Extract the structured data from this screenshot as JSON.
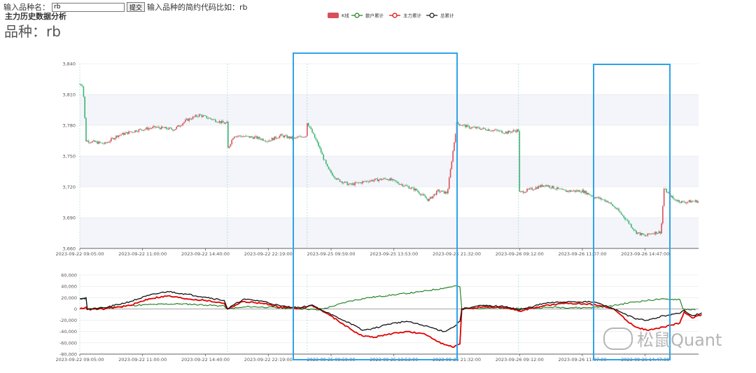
{
  "form": {
    "input_label": "输入品种名：",
    "input_value": "rb",
    "submit_label": "提交",
    "hint": "输入品种的简约代码比如：rb"
  },
  "app_title": "主力历史数据分析",
  "product_label": "品种：rb",
  "watermark": "松鼠Quant",
  "colors": {
    "up": "#d94e5d",
    "down": "#3cb371",
    "retail": "#1a7a1a",
    "main_force": "#e00000",
    "total": "#111111",
    "highlight_box": "#2fa3e6",
    "band": "#f3f5fa"
  },
  "chart_data": [
    {
      "type": "candlestick",
      "title": "",
      "legend": {
        "position": "top-center",
        "entries": [
          "K线",
          "散户累计",
          "主力累计",
          "总累计"
        ]
      },
      "x_ticks": [
        "2023-09-22 09:05:00",
        "2023-09-22 11:00:00",
        "2023-09-22 14:40:00",
        "2023-09-22 22:19:00",
        "2023-09-25 09:59:00",
        "2023-09-25 13:53:00",
        "2023-09-25 21:32:00",
        "2023-09-26 09:12:00",
        "2023-09-26 11:07:00",
        "2023-09-26 14:47:00"
      ],
      "y_ticks": [
        "3,660",
        "3,690",
        "3,720",
        "3,750",
        "3,780",
        "3,810",
        "3,840"
      ],
      "ylim": [
        3660,
        3840
      ],
      "grid": true,
      "session_breaks": [
        0,
        2.35,
        3.62,
        6.98
      ],
      "series": [
        {
          "name": "K线",
          "points": [
            [
              0,
              3820
            ],
            [
              0.05,
              3819
            ],
            [
              0.1,
              3765
            ],
            [
              0.4,
              3762
            ],
            [
              0.6,
              3770
            ],
            [
              0.9,
              3775
            ],
            [
              1.2,
              3778
            ],
            [
              1.5,
              3776
            ],
            [
              1.7,
              3785
            ],
            [
              1.9,
              3790
            ],
            [
              2.1,
              3786
            ],
            [
              2.3,
              3782
            ],
            [
              2.35,
              3756
            ],
            [
              2.45,
              3770
            ],
            [
              2.8,
              3768
            ],
            [
              3.0,
              3765
            ],
            [
              3.2,
              3770
            ],
            [
              3.4,
              3767
            ],
            [
              3.6,
              3770
            ],
            [
              3.62,
              3783
            ],
            [
              3.8,
              3760
            ],
            [
              3.95,
              3737
            ],
            [
              4.1,
              3727
            ],
            [
              4.3,
              3722
            ],
            [
              4.6,
              3726
            ],
            [
              4.9,
              3728
            ],
            [
              5.1,
              3723
            ],
            [
              5.35,
              3717
            ],
            [
              5.55,
              3707
            ],
            [
              5.7,
              3716
            ],
            [
              5.85,
              3714
            ],
            [
              6.0,
              3782
            ],
            [
              6.2,
              3778
            ],
            [
              6.5,
              3776
            ],
            [
              6.8,
              3773
            ],
            [
              6.95,
              3775
            ],
            [
              6.98,
              3714
            ],
            [
              7.2,
              3718
            ],
            [
              7.4,
              3722
            ],
            [
              7.7,
              3716
            ],
            [
              8.0,
              3716
            ],
            [
              8.2,
              3710
            ],
            [
              8.4,
              3706
            ],
            [
              8.55,
              3698
            ],
            [
              8.7,
              3688
            ],
            [
              8.85,
              3676
            ],
            [
              9.0,
              3672
            ],
            [
              9.1,
              3675
            ],
            [
              9.25,
              3676
            ],
            [
              9.3,
              3718
            ],
            [
              9.45,
              3708
            ],
            [
              9.6,
              3705
            ],
            [
              9.75,
              3706
            ]
          ]
        }
      ]
    },
    {
      "type": "line",
      "title": "",
      "x_ticks": [
        "2023-09-22 09:05:00",
        "2023-09-22 11:00:00",
        "2023-09-22 14:40:00",
        "2023-09-22 22:19:00",
        "2023-09-25 09:59:00",
        "2023-09-25 13:53:00",
        "2023-09-25 21:32:00",
        "2023-09-26 09:12:00",
        "2023-09-26 11:07:00",
        "2023-09-26 14:47:00"
      ],
      "y_ticks": [
        "-80,000",
        "-60,000",
        "-40,000",
        "-20,000",
        "0",
        "20,000",
        "40,000",
        "60,000"
      ],
      "ylim": [
        -80000,
        60000
      ],
      "grid": true,
      "series": [
        {
          "name": "散户累计",
          "points": [
            [
              0,
              18000
            ],
            [
              0.1,
              18000
            ],
            [
              0.12,
              0
            ],
            [
              0.5,
              3000
            ],
            [
              0.8,
              6000
            ],
            [
              1.2,
              8000
            ],
            [
              1.6,
              9000
            ],
            [
              2.0,
              7000
            ],
            [
              2.3,
              5000
            ],
            [
              2.35,
              0
            ],
            [
              2.7,
              4000
            ],
            [
              3.0,
              3000
            ],
            [
              3.3,
              1000
            ],
            [
              3.6,
              0
            ],
            [
              3.8,
              -2000
            ],
            [
              4.0,
              4000
            ],
            [
              4.3,
              14000
            ],
            [
              4.6,
              20000
            ],
            [
              5.0,
              25000
            ],
            [
              5.4,
              30000
            ],
            [
              5.8,
              37000
            ],
            [
              6.0,
              41000
            ],
            [
              6.05,
              39000
            ],
            [
              6.08,
              0
            ],
            [
              6.5,
              2000
            ],
            [
              7.0,
              0
            ],
            [
              7.5,
              3000
            ],
            [
              8.0,
              2000
            ],
            [
              8.4,
              4000
            ],
            [
              8.8,
              12000
            ],
            [
              9.2,
              17000
            ],
            [
              9.55,
              17000
            ],
            [
              9.6,
              0
            ],
            [
              9.8,
              -2000
            ]
          ]
        },
        {
          "name": "主力累计",
          "points": [
            [
              0,
              0
            ],
            [
              0.1,
              3000
            ],
            [
              0.12,
              -1000
            ],
            [
              0.4,
              0
            ],
            [
              0.8,
              6000
            ],
            [
              1.1,
              18000
            ],
            [
              1.4,
              23000
            ],
            [
              1.7,
              18000
            ],
            [
              2.0,
              15000
            ],
            [
              2.3,
              10000
            ],
            [
              2.35,
              0
            ],
            [
              2.6,
              13000
            ],
            [
              2.9,
              10000
            ],
            [
              3.2,
              3000
            ],
            [
              3.5,
              1000
            ],
            [
              3.7,
              6000
            ],
            [
              3.9,
              -6000
            ],
            [
              4.1,
              -20000
            ],
            [
              4.3,
              -35000
            ],
            [
              4.5,
              -48000
            ],
            [
              4.7,
              -50000
            ],
            [
              4.9,
              -45000
            ],
            [
              5.2,
              -40000
            ],
            [
              5.5,
              -45000
            ],
            [
              5.8,
              -63000
            ],
            [
              5.95,
              -68000
            ],
            [
              6.05,
              -62000
            ],
            [
              6.08,
              0
            ],
            [
              6.4,
              3000
            ],
            [
              6.8,
              2000
            ],
            [
              7.0,
              -4000
            ],
            [
              7.4,
              6000
            ],
            [
              7.8,
              10000
            ],
            [
              8.2,
              8000
            ],
            [
              8.5,
              0
            ],
            [
              8.7,
              -20000
            ],
            [
              8.85,
              -32000
            ],
            [
              9.05,
              -38000
            ],
            [
              9.3,
              -32000
            ],
            [
              9.55,
              -25000
            ],
            [
              9.62,
              -5000
            ],
            [
              9.75,
              -16000
            ],
            [
              9.9,
              -10000
            ]
          ]
        },
        {
          "name": "总累计",
          "points": [
            [
              0,
              18000
            ],
            [
              0.1,
              20000
            ],
            [
              0.12,
              -1000
            ],
            [
              0.4,
              2000
            ],
            [
              0.8,
              13000
            ],
            [
              1.1,
              24000
            ],
            [
              1.4,
              31000
            ],
            [
              1.7,
              26000
            ],
            [
              2.0,
              21000
            ],
            [
              2.3,
              15000
            ],
            [
              2.35,
              0
            ],
            [
              2.6,
              17000
            ],
            [
              2.9,
              14000
            ],
            [
              3.2,
              5000
            ],
            [
              3.5,
              2000
            ],
            [
              3.7,
              7000
            ],
            [
              3.9,
              -5000
            ],
            [
              4.1,
              -15000
            ],
            [
              4.3,
              -25000
            ],
            [
              4.5,
              -38000
            ],
            [
              4.7,
              -34000
            ],
            [
              4.9,
              -27000
            ],
            [
              5.2,
              -22000
            ],
            [
              5.5,
              -30000
            ],
            [
              5.8,
              -40000
            ],
            [
              5.95,
              -32000
            ],
            [
              6.05,
              -22000
            ],
            [
              6.08,
              0
            ],
            [
              6.4,
              6000
            ],
            [
              6.8,
              4000
            ],
            [
              7.0,
              -2000
            ],
            [
              7.4,
              10000
            ],
            [
              7.8,
              13000
            ],
            [
              8.2,
              12000
            ],
            [
              8.5,
              0
            ],
            [
              8.7,
              -10000
            ],
            [
              8.85,
              -18000
            ],
            [
              9.05,
              -20000
            ],
            [
              9.3,
              -12000
            ],
            [
              9.55,
              -8000
            ],
            [
              9.62,
              -2000
            ],
            [
              9.75,
              -12000
            ],
            [
              9.9,
              -7000
            ]
          ]
        }
      ]
    }
  ]
}
